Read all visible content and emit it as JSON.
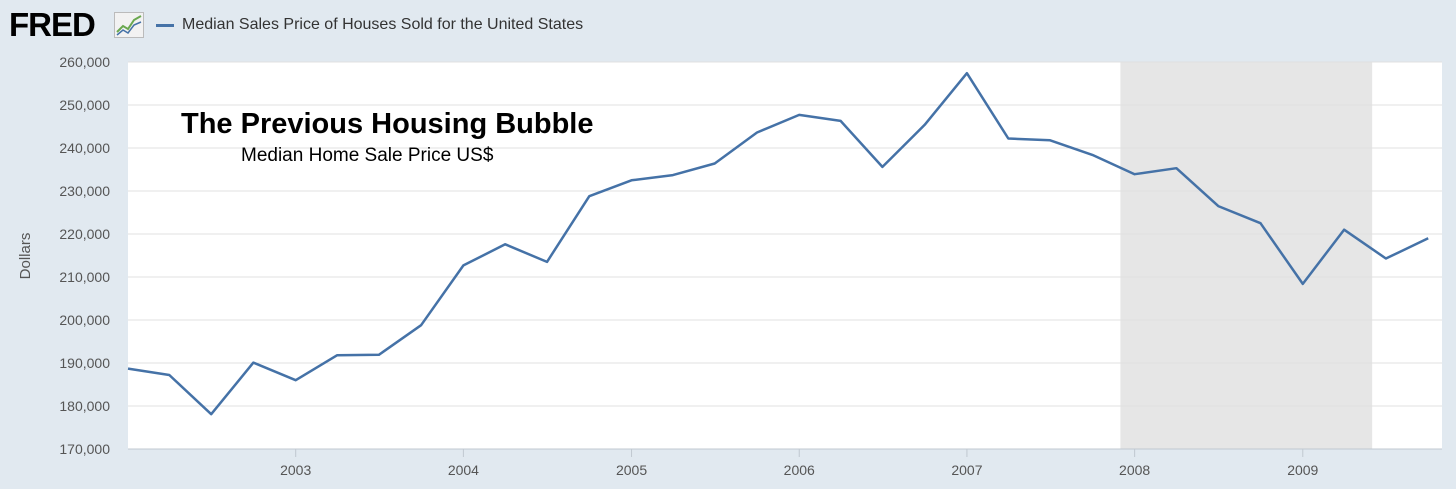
{
  "header": {
    "logo_text": "FRED",
    "logo_icon": "line-chart-icon",
    "legend_label": "Median Sales Price of Houses Sold for the United States",
    "legend_color": "#4572a7"
  },
  "chart_data": {
    "type": "line",
    "title": "",
    "xlabel": "",
    "ylabel": "Dollars",
    "annotations": [
      {
        "text": "The Previous Housing Bubble",
        "style": "bold"
      },
      {
        "text": "Median Home Sale Price US$",
        "style": "normal"
      }
    ],
    "x": [
      "2002-01-01",
      "2002-04-01",
      "2002-07-01",
      "2002-10-01",
      "2003-01-01",
      "2003-04-01",
      "2003-07-01",
      "2003-10-01",
      "2004-01-01",
      "2004-04-01",
      "2004-07-01",
      "2004-10-01",
      "2005-01-01",
      "2005-04-01",
      "2005-07-01",
      "2005-10-01",
      "2006-01-01",
      "2006-04-01",
      "2006-07-01",
      "2006-10-01",
      "2007-01-01",
      "2007-04-01",
      "2007-07-01",
      "2007-10-01",
      "2008-01-01",
      "2008-04-01",
      "2008-07-01",
      "2008-10-01",
      "2009-01-01",
      "2009-04-01",
      "2009-07-01",
      "2009-10-01"
    ],
    "series": [
      {
        "name": "Median Sales Price of Houses Sold for the United States",
        "color": "#4572a7",
        "values": [
          188700,
          187200,
          178100,
          190100,
          186000,
          191800,
          191900,
          198800,
          212700,
          217600,
          213500,
          228800,
          232500,
          233700,
          236400,
          243600,
          247700,
          246300,
          235600,
          245400,
          257400,
          242200,
          241800,
          238400,
          233900,
          235300,
          226500,
          222500,
          208400,
          221000,
          214300,
          219000
        ]
      }
    ],
    "ylim": [
      170000,
      260000
    ],
    "y_ticks": [
      170000,
      180000,
      190000,
      200000,
      210000,
      220000,
      230000,
      240000,
      250000,
      260000
    ],
    "y_tick_labels": [
      "170,000",
      "180,000",
      "190,000",
      "200,000",
      "210,000",
      "220,000",
      "230,000",
      "240,000",
      "250,000",
      "260,000"
    ],
    "x_ticks": [
      "2003-01-01",
      "2004-01-01",
      "2005-01-01",
      "2006-01-01",
      "2007-01-01",
      "2008-01-01",
      "2009-01-01"
    ],
    "x_tick_labels": [
      "2003",
      "2004",
      "2005",
      "2006",
      "2007",
      "2008",
      "2009"
    ],
    "recession": {
      "start": "2007-12-01",
      "end": "2009-06-01",
      "color": "#e6e6e6"
    },
    "grid": true
  }
}
